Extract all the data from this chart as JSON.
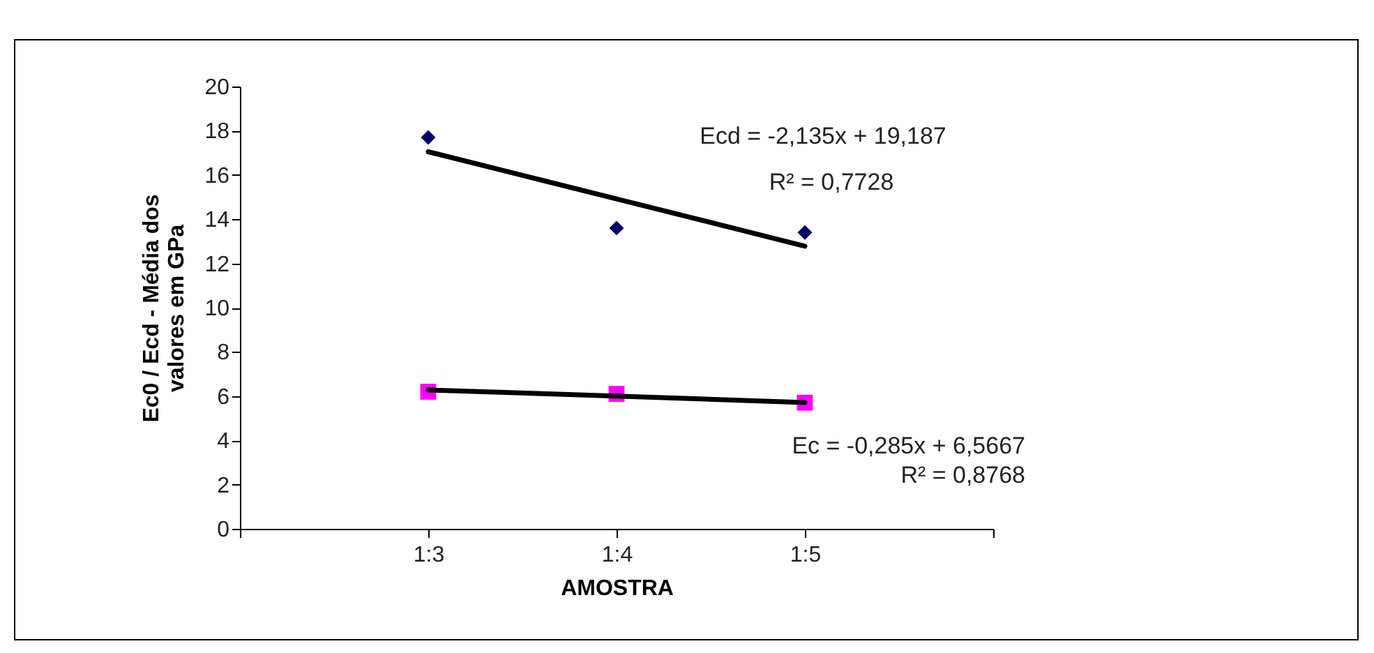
{
  "chart_data": {
    "type": "scatter",
    "xlabel": "AMOSTRA",
    "ylabel": "Ec0 / Ecd - Média dos valores em GPa",
    "categories": [
      null,
      "1:3",
      "1:4",
      "1:5",
      null
    ],
    "series": [
      {
        "color": "#000066",
        "marker": "diamond",
        "values": [
          null,
          17.7,
          13.6,
          13.4,
          null
        ]
      },
      {
        "color": "#ff00ff",
        "marker": "square",
        "values": [
          null,
          6.2,
          6.1,
          5.7,
          null
        ]
      },
      {
        "type": "line",
        "color": "#000000",
        "values": [
          null,
          17.05,
          14.92,
          12.78,
          null
        ]
      },
      {
        "type": "line",
        "color": "#000000",
        "values": [
          null,
          6.28,
          6.0,
          5.71,
          null
        ]
      }
    ],
    "annotations": [
      "Ecd = -2,135x + 19,187",
      "R² = 0,7728",
      "Ec = -0,285x + 6,5667",
      "R² = 0,8768"
    ],
    "ylim": [
      0,
      20
    ],
    "yticks": [
      0,
      2,
      4,
      6,
      8,
      10,
      12,
      14,
      16,
      18,
      20
    ],
    "grid": false
  }
}
